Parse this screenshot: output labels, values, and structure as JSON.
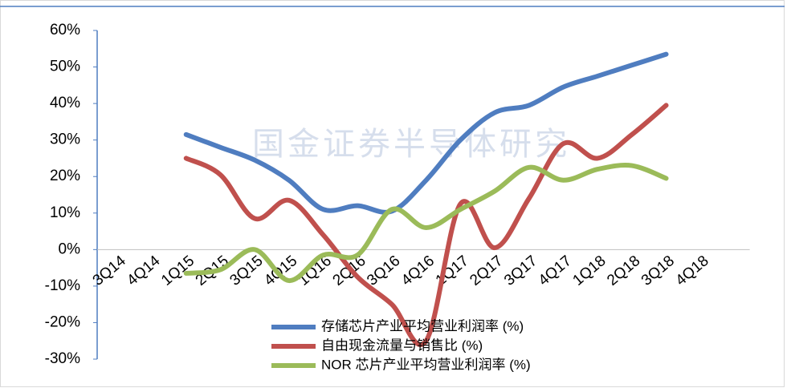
{
  "chart_data": {
    "type": "line",
    "watermark": "国金证券半导体研究",
    "categories": [
      "3Q14",
      "4Q14",
      "1Q15",
      "2Q15",
      "3Q15",
      "4Q15",
      "1Q16",
      "2Q16",
      "3Q16",
      "4Q16",
      "1Q17",
      "2Q17",
      "3Q17",
      "4Q17",
      "1Q18",
      "2Q18",
      "3Q18",
      "4Q18"
    ],
    "series": [
      {
        "name": "存储芯片产业平均营业利润率 (%)",
        "color": "#4f7dc0",
        "values": [
          null,
          null,
          31.5,
          28,
          24.5,
          19,
          11,
          12,
          10.5,
          19,
          30,
          37.5,
          39.5,
          44.5,
          47.5,
          50.5,
          53.5,
          null
        ]
      },
      {
        "name": "自由现金流量与销售比 (%)",
        "color": "#c0504d",
        "values": [
          null,
          null,
          25,
          20.5,
          8.5,
          13.5,
          4,
          -7.5,
          -15,
          -25,
          12.5,
          0.5,
          14,
          29,
          25,
          31.5,
          39.5,
          null
        ]
      },
      {
        "name": "NOR 芯片产业平均营业利润率 (%)",
        "color": "#9bbb59",
        "values": [
          null,
          null,
          -6.5,
          -5.5,
          0,
          -8.5,
          -1.5,
          -1.5,
          11,
          6,
          11,
          16,
          22.5,
          19,
          22,
          23,
          19.5,
          null
        ]
      }
    ],
    "ylim": [
      -30,
      60
    ],
    "yticks": [
      {
        "value": -30,
        "label": "-30%"
      },
      {
        "value": -20,
        "label": "-20%"
      },
      {
        "value": -10,
        "label": "-10%"
      },
      {
        "value": 0,
        "label": "0%"
      },
      {
        "value": 10,
        "label": "10%"
      },
      {
        "value": 20,
        "label": "20%"
      },
      {
        "value": 30,
        "label": "30%"
      },
      {
        "value": 40,
        "label": "40%"
      },
      {
        "value": 50,
        "label": "50%"
      },
      {
        "value": 60,
        "label": "60%"
      }
    ],
    "legend": "bottom"
  }
}
